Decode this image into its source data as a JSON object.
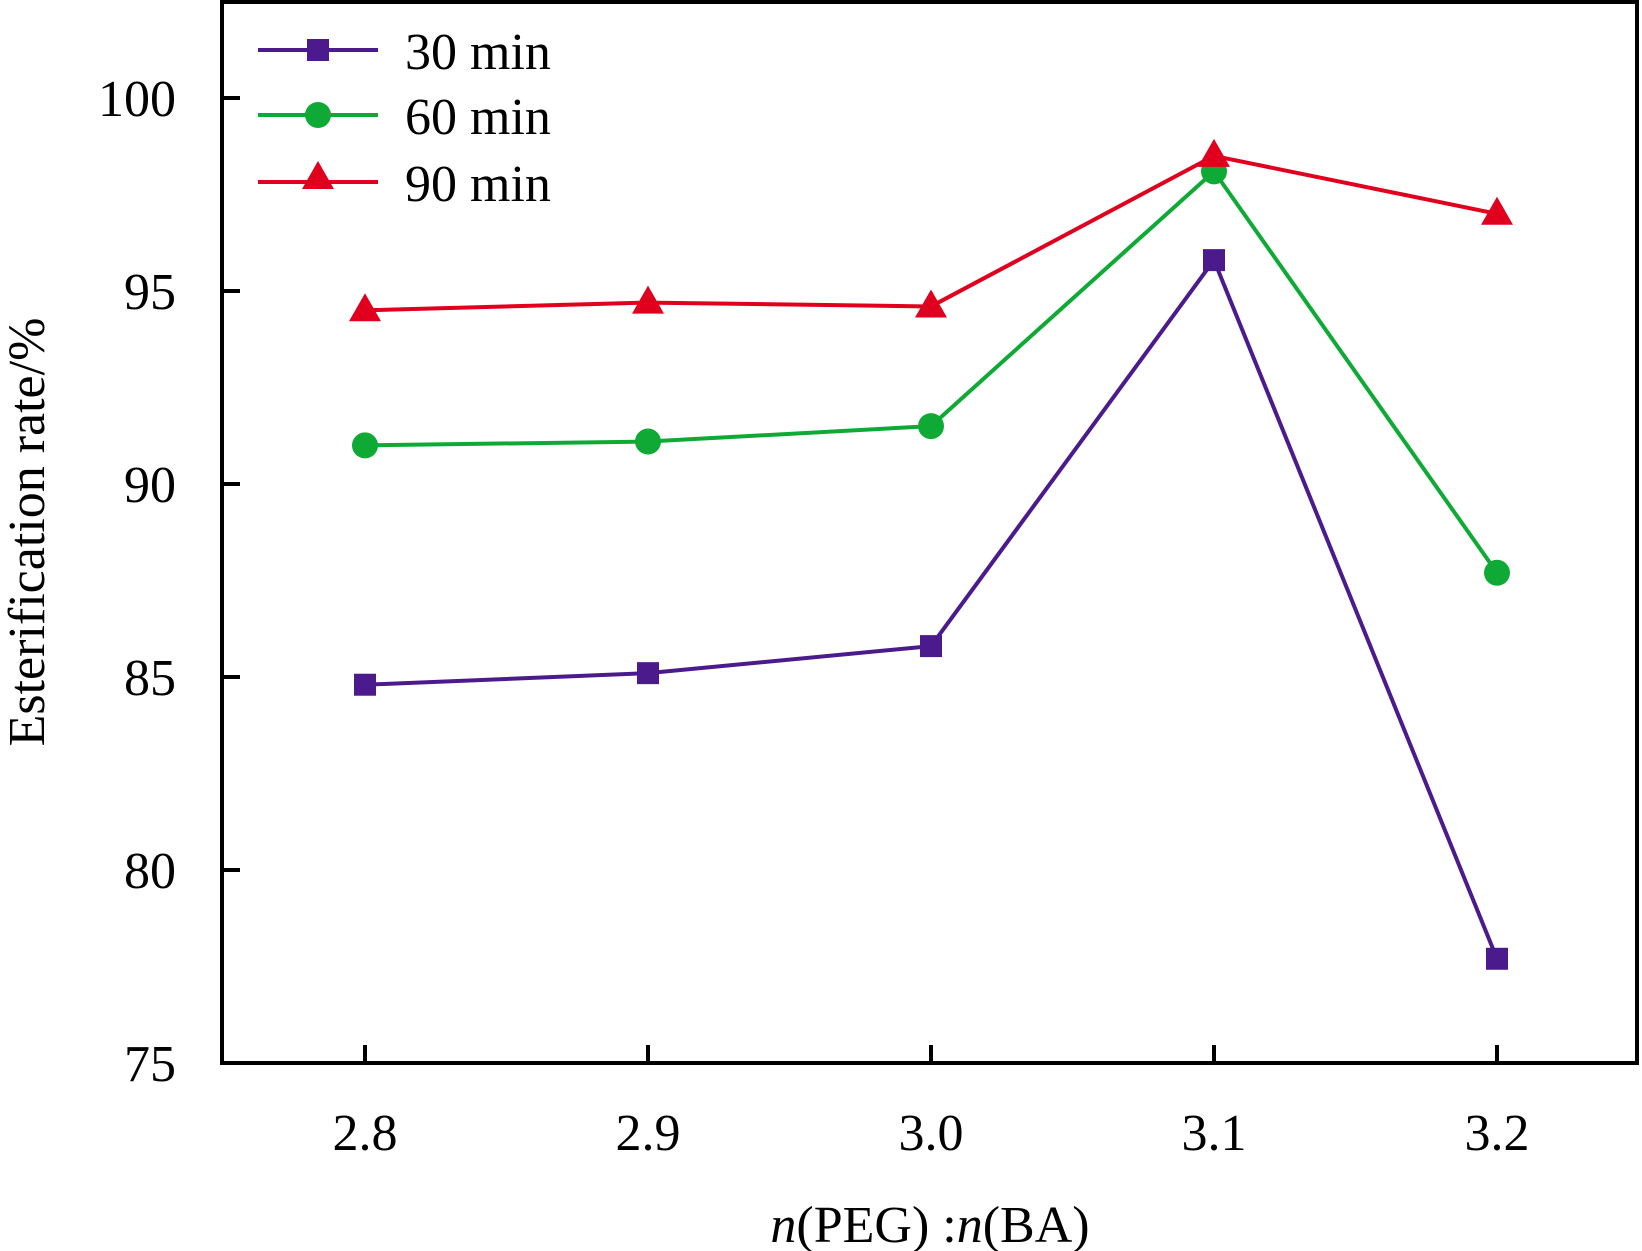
{
  "chart_data": {
    "type": "line",
    "title": "",
    "xlabel": "n(PEG):n(BA)",
    "xlabel_parts": {
      "italic_n1": "n",
      "part1": "(PEG) :",
      "italic_n2": "n",
      "part2": "(BA)"
    },
    "ylabel": "Esterification rate/%",
    "x": [
      2.8,
      2.9,
      3.0,
      3.1,
      3.2
    ],
    "x_tick_labels": [
      "2.8",
      "2.9",
      "3.0",
      "3.1",
      "3.2"
    ],
    "xlim": [
      2.75,
      3.25
    ],
    "ylim": [
      75,
      102.5
    ],
    "y_ticks": [
      75,
      80,
      85,
      90,
      95,
      100
    ],
    "y_tick_labels": [
      "75",
      "80",
      "85",
      "90",
      "95",
      "100"
    ],
    "grid": false,
    "legend_position": "top-left",
    "series": [
      {
        "name": "30 min",
        "color": "#4b1a8c",
        "marker": "square",
        "values": [
          84.8,
          85.1,
          85.8,
          95.8,
          77.7
        ]
      },
      {
        "name": "60 min",
        "color": "#0faa35",
        "marker": "circle",
        "values": [
          91.0,
          91.1,
          91.5,
          98.1,
          87.7
        ]
      },
      {
        "name": "90 min",
        "color": "#e0001e",
        "marker": "triangle",
        "values": [
          94.5,
          94.7,
          94.6,
          98.5,
          97.0
        ]
      }
    ]
  }
}
